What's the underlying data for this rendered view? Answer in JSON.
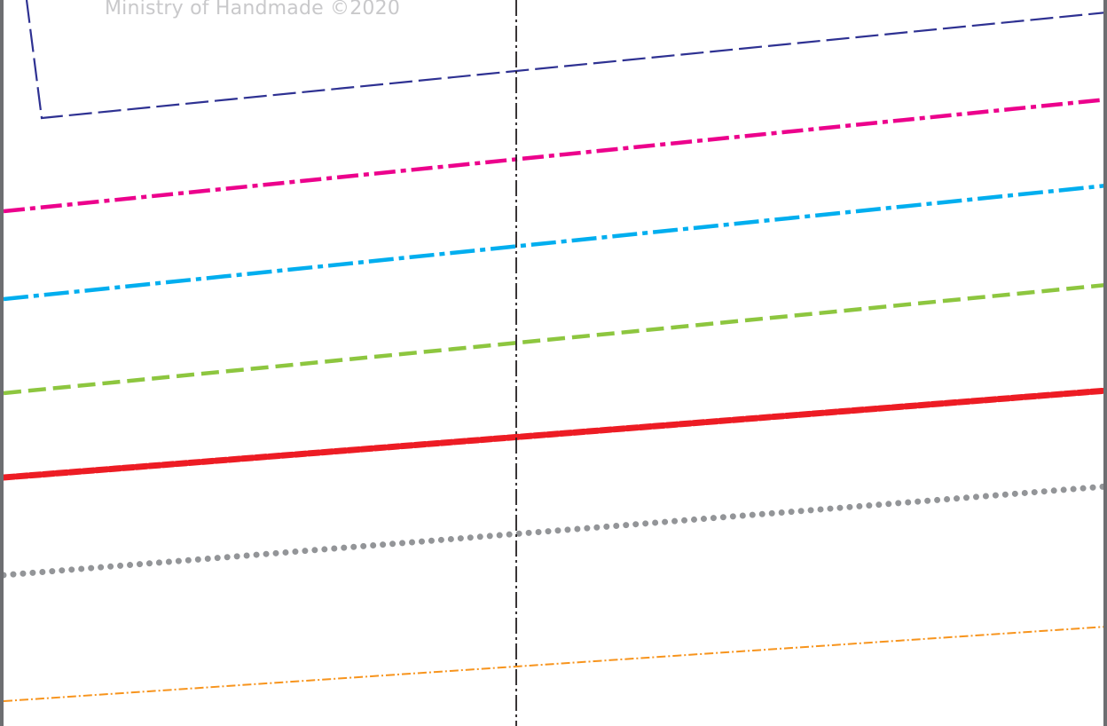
{
  "document": {
    "copyright": "Ministry of Handmade ©2020"
  },
  "size_lines": [
    {
      "size": "navy-outline",
      "color": "#2e3192"
    },
    {
      "size": "magenta-dashdot",
      "color": "#ec008c"
    },
    {
      "size": "cyan-dashdot",
      "color": "#00aeef"
    },
    {
      "size": "green-dashed",
      "color": "#8dc63f"
    },
    {
      "size": "red-dashed",
      "color": "#ed1c24"
    },
    {
      "size": "grey-dotted",
      "color": "#939598"
    },
    {
      "size": "orange-dashdot",
      "color": "#f7941d"
    }
  ],
  "grainline": {
    "color": "#231f20"
  }
}
